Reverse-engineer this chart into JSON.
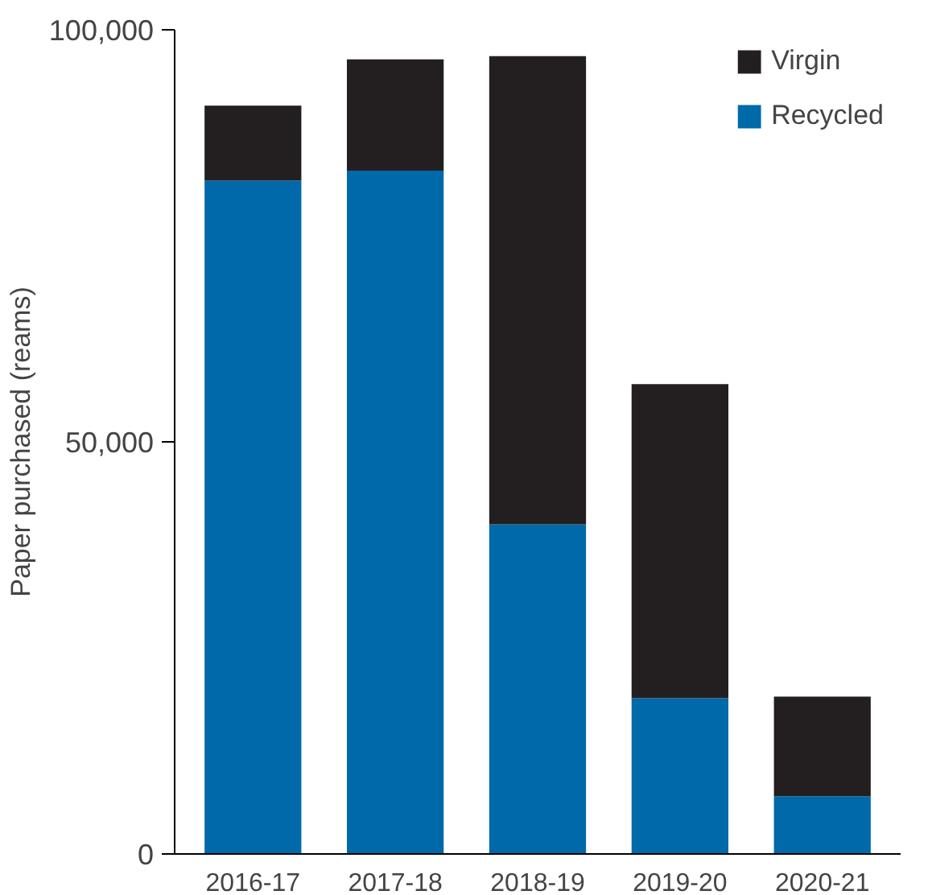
{
  "chart_data": {
    "type": "bar",
    "stacked": true,
    "ylabel": "Paper purchased (reams)",
    "categories": [
      "2016-17",
      "2017-18",
      "2018-19",
      "2019-20",
      "2020-21"
    ],
    "series": [
      {
        "name": "Recycled",
        "color": "#0069aa",
        "values": [
          81700,
          82900,
          40000,
          18900,
          7000
        ]
      },
      {
        "name": "Virgin",
        "color": "#231f20",
        "values": [
          9100,
          13500,
          56800,
          38100,
          12100
        ]
      }
    ],
    "ylim": [
      0,
      100000
    ],
    "yticks": [
      0,
      {
        "value": 50000,
        "label": "50,000"
      },
      {
        "value": 100000,
        "label": "100,000"
      }
    ],
    "grid": false,
    "legend": "top right"
  }
}
